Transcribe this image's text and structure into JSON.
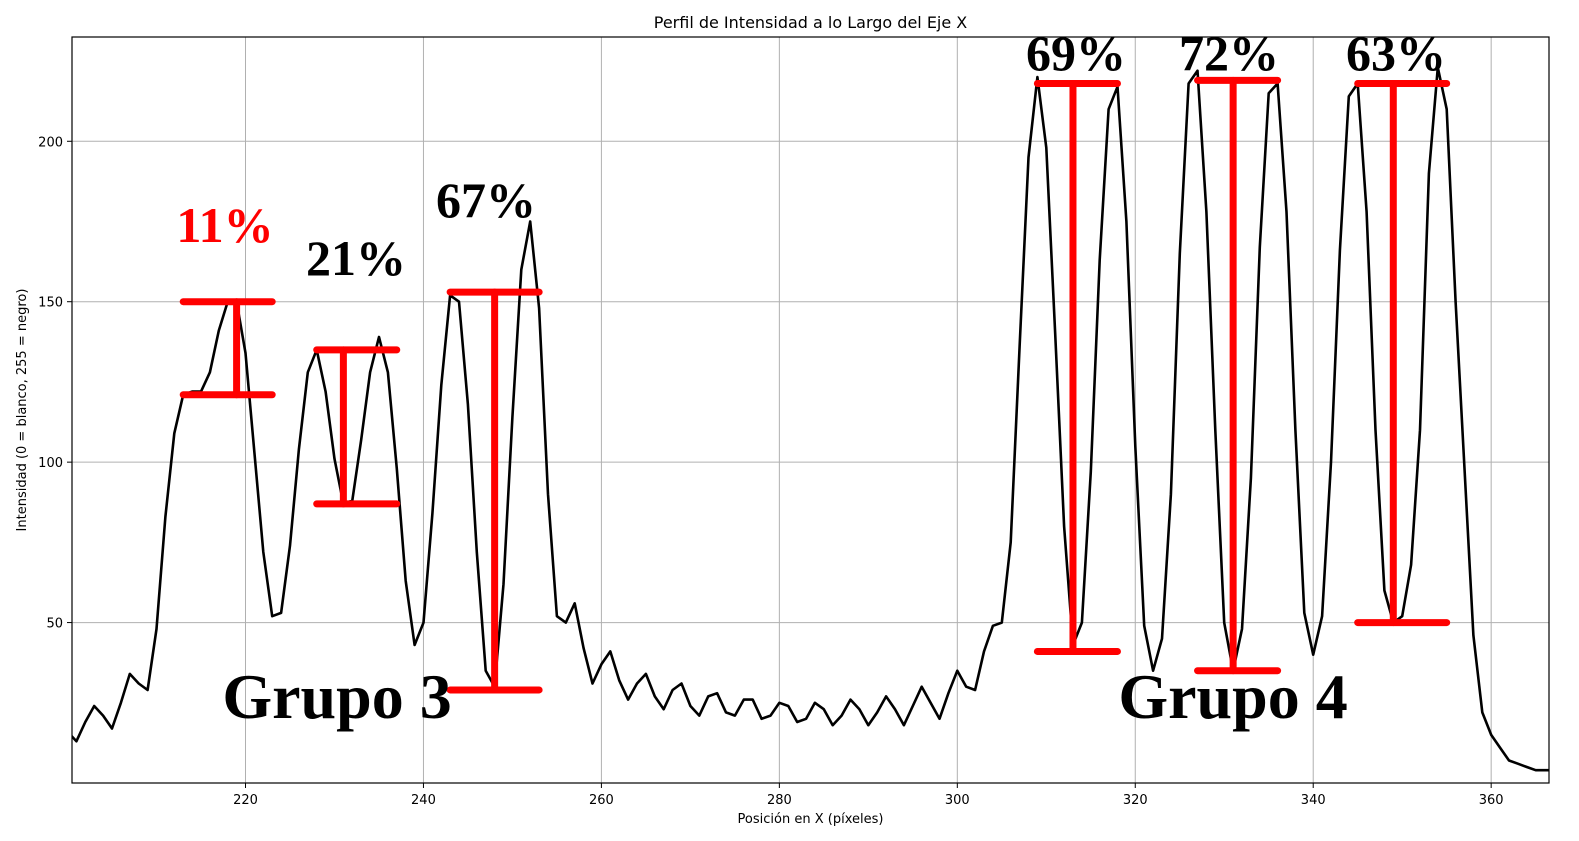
{
  "chart_data": {
    "type": "line",
    "title": "Perfil de Intensidad a lo Largo del Eje X",
    "xlabel": "Posición en X (píxeles)",
    "ylabel": "Intensidad (0 = blanco, 255 = negro)",
    "xlim": [
      200.5,
      366.5
    ],
    "ylim": [
      0,
      232.5
    ],
    "xticks": [
      220,
      240,
      260,
      280,
      300,
      320,
      340,
      360
    ],
    "yticks": [
      50,
      100,
      150,
      200
    ],
    "grid": true,
    "series": [
      {
        "color": "#000000",
        "x": [
          200,
          201,
          202,
          203,
          204,
          205,
          206,
          207,
          208,
          209,
          210,
          211,
          212,
          213,
          214,
          215,
          216,
          217,
          218,
          219,
          220,
          221,
          222,
          223,
          224,
          225,
          226,
          227,
          228,
          229,
          230,
          231,
          232,
          233,
          234,
          235,
          236,
          237,
          238,
          239,
          240,
          241,
          242,
          243,
          244,
          245,
          246,
          247,
          248,
          249,
          250,
          251,
          252,
          253,
          254,
          255,
          256,
          257,
          258,
          259,
          260,
          261,
          262,
          263,
          264,
          265,
          266,
          267,
          268,
          269,
          270,
          271,
          272,
          273,
          274,
          275,
          276,
          277,
          278,
          279,
          280,
          281,
          282,
          283,
          284,
          285,
          286,
          287,
          288,
          289,
          290,
          291,
          292,
          293,
          294,
          295,
          296,
          297,
          298,
          299,
          300,
          301,
          302,
          303,
          304,
          305,
          306,
          307,
          308,
          309,
          310,
          311,
          312,
          313,
          314,
          315,
          316,
          317,
          318,
          319,
          320,
          321,
          322,
          323,
          324,
          325,
          326,
          327,
          328,
          329,
          330,
          331,
          332,
          333,
          334,
          335,
          336,
          337,
          338,
          339,
          340,
          341,
          342,
          343,
          344,
          345,
          346,
          347,
          348,
          349,
          350,
          351,
          352,
          353,
          354,
          355,
          356,
          357,
          358,
          359,
          360,
          361,
          362,
          363,
          364,
          365,
          366,
          367
        ],
        "y": [
          16,
          13,
          19,
          24,
          21,
          17,
          25,
          34,
          31,
          29,
          48,
          83,
          109,
          121,
          122,
          122,
          128,
          141,
          150,
          150,
          134,
          103,
          72,
          52,
          53,
          74,
          104,
          128,
          135,
          122,
          101,
          87,
          88,
          107,
          128,
          139,
          128,
          98,
          63,
          43,
          50,
          84,
          124,
          152,
          150,
          118,
          72,
          35,
          30,
          62,
          114,
          160,
          175,
          148,
          90,
          52,
          50,
          56,
          42,
          31,
          37,
          41,
          32,
          26,
          31,
          34,
          27,
          23,
          29,
          31,
          24,
          21,
          27,
          28,
          22,
          21,
          26,
          26,
          20,
          21,
          25,
          24,
          19,
          20,
          25,
          23,
          18,
          21,
          26,
          23,
          18,
          22,
          27,
          23,
          18,
          24,
          30,
          25,
          20,
          28,
          35,
          30,
          29,
          41,
          49,
          50,
          75,
          136,
          195,
          220,
          198,
          140,
          80,
          43,
          50,
          97,
          163,
          210,
          217,
          175,
          105,
          49,
          35,
          45,
          90,
          165,
          218,
          222,
          178,
          110,
          50,
          35,
          48,
          95,
          167,
          215,
          218,
          178,
          110,
          53,
          40,
          52,
          100,
          166,
          214,
          218,
          178,
          110,
          60,
          50,
          52,
          68,
          110,
          190,
          223,
          210,
          150,
          98,
          46,
          22,
          15,
          11,
          7,
          6,
          5,
          4,
          4,
          4
        ]
      }
    ],
    "annotations": {
      "percentages": [
        {
          "text": "11%",
          "color": "#ff0000"
        },
        {
          "text": "21%",
          "color": "#000000"
        },
        {
          "text": "67%",
          "color": "#000000"
        },
        {
          "text": "69%",
          "color": "#000000"
        },
        {
          "text": "72%",
          "color": "#000000"
        },
        {
          "text": "63%",
          "color": "#000000"
        }
      ],
      "groups": [
        {
          "text": "Grupo 3"
        },
        {
          "text": "Grupo 4"
        }
      ],
      "measurements": [
        {
          "x": 219,
          "x_start": 213,
          "x_end": 223,
          "top": 150,
          "bottom": 121
        },
        {
          "x": 231,
          "x_start": 228,
          "x_end": 237,
          "top": 135,
          "bottom": 87
        },
        {
          "x": 248,
          "x_start": 243,
          "x_end": 253,
          "top": 153,
          "bottom": 29
        },
        {
          "x": 313,
          "x_start": 309,
          "x_end": 318,
          "top": 218,
          "bottom": 41
        },
        {
          "x": 331,
          "x_start": 327,
          "x_end": 336,
          "top": 219,
          "bottom": 35
        },
        {
          "x": 349,
          "x_start": 345,
          "x_end": 355,
          "top": 218,
          "bottom": 50
        }
      ]
    }
  }
}
